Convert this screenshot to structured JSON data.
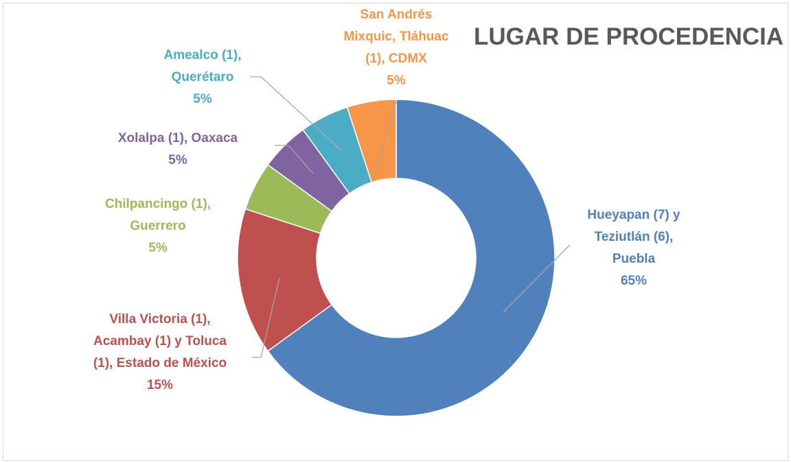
{
  "chart_data": {
    "type": "donut",
    "title": "LUGAR DE PROCEDENCIA",
    "categories": [
      "Hueyapan (7) y Teziutlán (6), Puebla",
      "Villa Victoria (1), Acambay (1) y Toluca (1), Estado de México",
      "Chilpancingo (1), Guerrero",
      "Xolalpa (1), Oaxaca",
      "Amealco (1), Querétaro",
      "San Andrés Mixquic, Tláhuac (1), CDMX"
    ],
    "values": [
      65,
      15,
      5,
      5,
      5,
      5
    ],
    "value_labels": [
      "65%",
      "15%",
      "5%",
      "5%",
      "5%",
      "5%"
    ],
    "colors": [
      "#4f81bd",
      "#c0504d",
      "#9bbb59",
      "#8064a2",
      "#4bacc6",
      "#f79646"
    ]
  }
}
